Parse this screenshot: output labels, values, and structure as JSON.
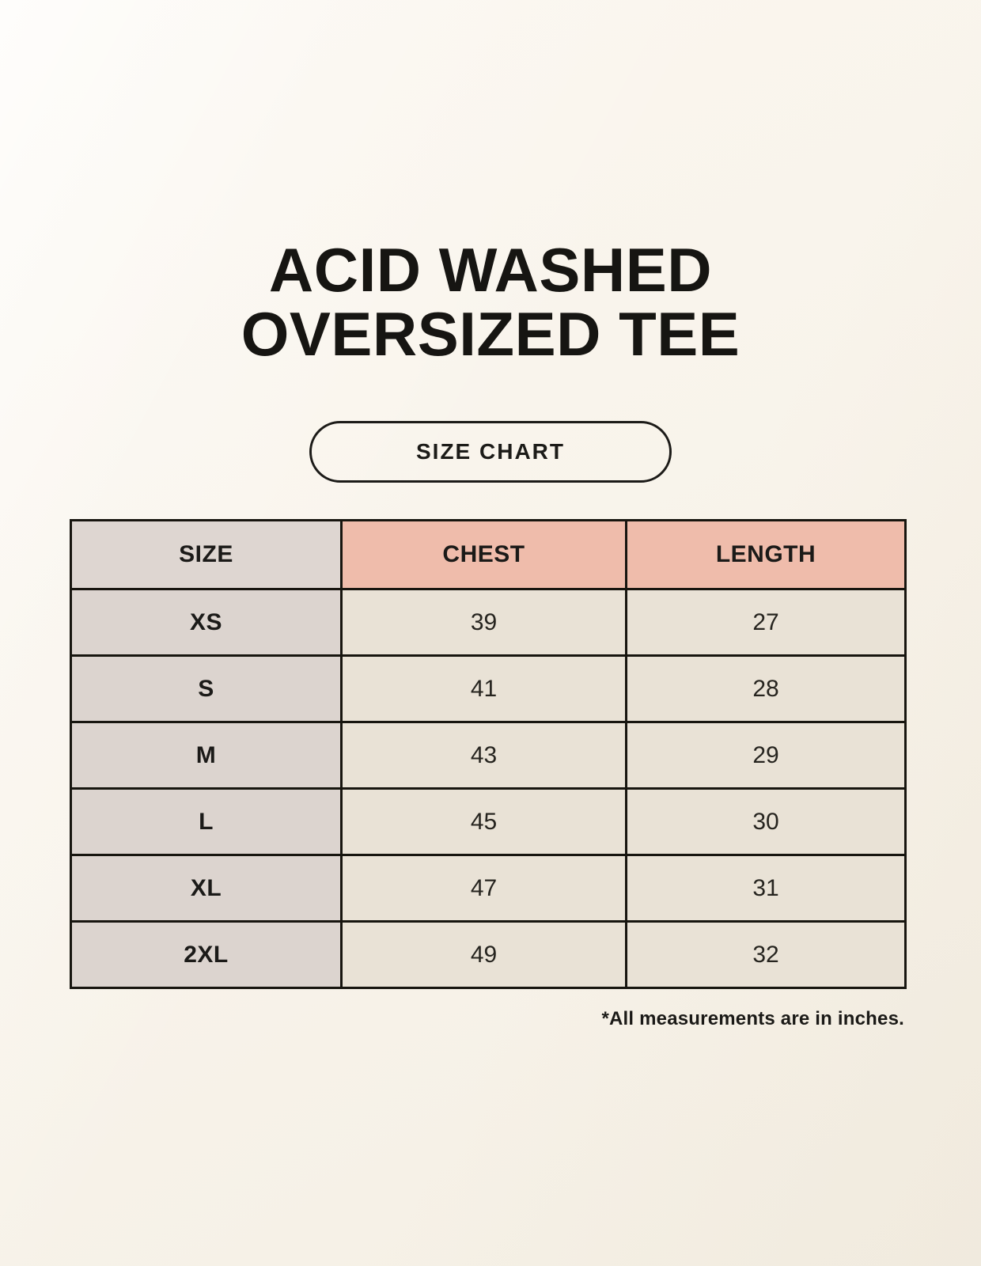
{
  "page": {
    "title_line1": "ACID WASHED",
    "title_line2": "OVERSIZED TEE",
    "button_label": "SIZE CHART",
    "footnote": "*All measurements are in inches."
  },
  "colors": {
    "background": "#f8f3ea",
    "header_accent": "#efbcab",
    "header_size": "#ded6d1",
    "size_column": "#dcd4cf",
    "data_cell": "#e9e2d6",
    "table_border": "#17150f",
    "text": "#161512"
  },
  "chart_data": {
    "type": "table",
    "title": "ACID WASHED OVERSIZED TEE — SIZE CHART",
    "columns": [
      "SIZE",
      "CHEST",
      "LENGTH"
    ],
    "rows": [
      {
        "size": "XS",
        "chest": 39,
        "length": 27
      },
      {
        "size": "S",
        "chest": 41,
        "length": 28
      },
      {
        "size": "M",
        "chest": 43,
        "length": 29
      },
      {
        "size": "L",
        "chest": 45,
        "length": 30
      },
      {
        "size": "XL",
        "chest": 47,
        "length": 31
      },
      {
        "size": "2XL",
        "chest": 49,
        "length": 32
      }
    ],
    "units": "inches",
    "note": "*All measurements are in inches."
  }
}
